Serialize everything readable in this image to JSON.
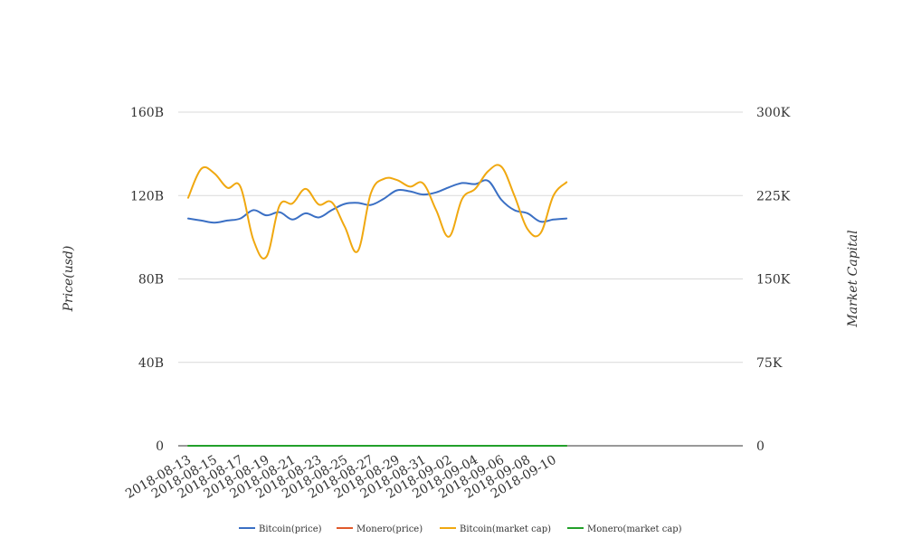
{
  "chart_data": {
    "type": "line",
    "x": [
      "2018-08-13",
      "2018-08-14",
      "2018-08-15",
      "2018-08-16",
      "2018-08-17",
      "2018-08-18",
      "2018-08-19",
      "2018-08-20",
      "2018-08-21",
      "2018-08-22",
      "2018-08-23",
      "2018-08-24",
      "2018-08-25",
      "2018-08-26",
      "2018-08-27",
      "2018-08-28",
      "2018-08-29",
      "2018-08-30",
      "2018-08-31",
      "2018-09-01",
      "2018-09-02",
      "2018-09-03",
      "2018-09-04",
      "2018-09-05",
      "2018-09-06",
      "2018-09-07",
      "2018-09-08",
      "2018-09-09",
      "2018-09-10",
      "2018-09-11"
    ],
    "x_tick_labels": [
      "2018-08-13",
      "2018-08-15",
      "2018-08-17",
      "2018-08-19",
      "2018-08-21",
      "2018-08-23",
      "2018-08-25",
      "2018-08-27",
      "2018-08-29",
      "2018-08-31",
      "2018-09-02",
      "2018-09-04",
      "2018-09-06",
      "2018-09-08",
      "2018-09-10"
    ],
    "y_left": {
      "label": "Price(usd)",
      "range": [
        0,
        160000000000
      ],
      "ticks": [
        0,
        40000000000,
        80000000000,
        120000000000,
        160000000000
      ],
      "tick_labels": [
        "0",
        "40B",
        "80B",
        "120B",
        "160B"
      ]
    },
    "y_right": {
      "label": "Market Capital",
      "range": [
        0,
        300000
      ],
      "ticks": [
        0,
        75000,
        150000,
        225000,
        300000
      ],
      "tick_labels": [
        "0",
        "75K",
        "150K",
        "225K",
        "300K"
      ]
    },
    "series": [
      {
        "name": "Bitcoin(price)",
        "axis": "left",
        "color": "#3a6fc4",
        "values": [
          109000000000,
          108000000000,
          107000000000,
          108000000000,
          109000000000,
          113000000000,
          110500000000,
          112000000000,
          108500000000,
          111500000000,
          109500000000,
          113000000000,
          116000000000,
          116500000000,
          115500000000,
          118500000000,
          122500000000,
          122000000000,
          120500000000,
          121500000000,
          124000000000,
          126000000000,
          125500000000,
          127000000000,
          118000000000,
          113000000000,
          111500000000,
          107500000000,
          108500000000,
          109000000000
        ]
      },
      {
        "name": "Monero(price)",
        "axis": "left",
        "color": "#e05a2b",
        "values": [
          0,
          0,
          0,
          0,
          0,
          0,
          0,
          0,
          0,
          0,
          0,
          0,
          0,
          0,
          0,
          0,
          0,
          0,
          0,
          0,
          0,
          0,
          0,
          0,
          0,
          0,
          0,
          0,
          0,
          0
        ]
      },
      {
        "name": "Bitcoin(market cap)",
        "axis": "right",
        "color": "#f0a810",
        "values": [
          223000,
          249000,
          245000,
          232000,
          233000,
          185000,
          170000,
          216000,
          218000,
          231000,
          217000,
          219000,
          197000,
          175000,
          227000,
          240000,
          239000,
          233000,
          236000,
          212000,
          188000,
          222000,
          231000,
          247000,
          251000,
          225000,
          195000,
          191000,
          225000,
          237000
        ]
      },
      {
        "name": "Monero(market cap)",
        "axis": "right",
        "color": "#22a02a",
        "values": [
          0,
          0,
          0,
          0,
          0,
          0,
          0,
          0,
          0,
          0,
          0,
          0,
          0,
          0,
          0,
          0,
          0,
          0,
          0,
          0,
          0,
          0,
          0,
          0,
          0,
          0,
          0,
          0,
          0,
          0
        ]
      }
    ],
    "grid": true,
    "legend_position": "bottom"
  }
}
